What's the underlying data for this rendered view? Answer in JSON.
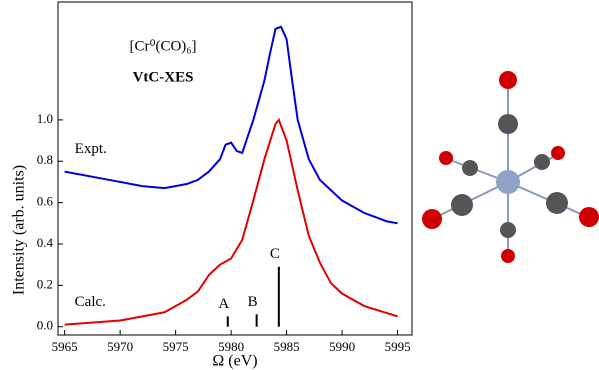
{
  "chart_data": {
    "type": "line",
    "title": "VtC-XES",
    "subtitle": "[Cr⁰(CO)₆]",
    "x_label": "Ω (eV)",
    "y_label": "Intensity  (arb. units)",
    "xlim": [
      5964.4,
      5996.3
    ],
    "ylim": [
      -0.04,
      1.57
    ],
    "xticks": [
      5965,
      5970,
      5975,
      5980,
      5985,
      5990,
      5995
    ],
    "yticks": [
      {
        "value": 0,
        "label": "0.0"
      },
      0.2,
      0.4,
      0.6,
      0.8,
      {
        "value": 1,
        "label": "1.0"
      }
    ],
    "series": [
      {
        "name": "Expt.",
        "color": "#0000dd",
        "x": [
          5965,
          5968,
          5970,
          5972,
          5974,
          5976,
          5977,
          5978,
          5979,
          5979.5,
          5980,
          5980.5,
          5981,
          5982,
          5983,
          5983.5,
          5984,
          5984.5,
          5985,
          5985.5,
          5986,
          5987,
          5988,
          5989,
          5990,
          5991,
          5992,
          5993,
          5994,
          5995
        ],
        "values": [
          0.75,
          0.72,
          0.7,
          0.68,
          0.67,
          0.69,
          0.71,
          0.75,
          0.81,
          0.88,
          0.89,
          0.85,
          0.84,
          1.0,
          1.19,
          1.32,
          1.44,
          1.45,
          1.39,
          1.19,
          1.0,
          0.81,
          0.71,
          0.66,
          0.61,
          0.58,
          0.55,
          0.53,
          0.51,
          0.5
        ]
      },
      {
        "name": "Calc.",
        "color": "#e00000",
        "x": [
          5965,
          5970,
          5974,
          5976,
          5977,
          5978,
          5979,
          5980,
          5981,
          5982,
          5983,
          5984,
          5984.3,
          5985,
          5986,
          5987,
          5988,
          5989,
          5990,
          5992,
          5995
        ],
        "values": [
          0.01,
          0.03,
          0.07,
          0.13,
          0.17,
          0.25,
          0.3,
          0.33,
          0.42,
          0.61,
          0.81,
          0.98,
          1.0,
          0.9,
          0.66,
          0.44,
          0.31,
          0.21,
          0.16,
          0.1,
          0.05
        ]
      }
    ],
    "sticks": {
      "color": "#000000",
      "x": [
        5979.7,
        5982.3,
        5984.3
      ],
      "values": [
        0.05,
        0.06,
        0.29
      ],
      "labels": [
        "A",
        "B",
        "C"
      ]
    }
  }
}
